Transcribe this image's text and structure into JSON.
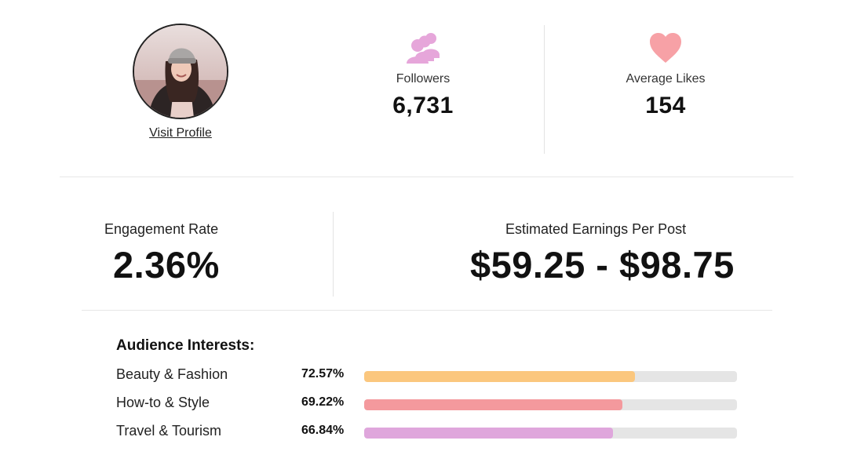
{
  "profile": {
    "visit_label": "Visit Profile",
    "avatar_icon": "profile-photo"
  },
  "followers": {
    "label": "Followers",
    "value": "6,731",
    "icon": "group-icon",
    "icon_color": "#e6a6da"
  },
  "likes": {
    "label": "Average Likes",
    "value": "154",
    "icon": "heart-icon",
    "icon_color": "#f7a1a6"
  },
  "engagement": {
    "label": "Engagement Rate",
    "value": "2.36%"
  },
  "earnings": {
    "label": "Estimated Earnings Per Post",
    "value": "$59.25 - $98.75"
  },
  "interests": {
    "title": "Audience Interests:",
    "items": [
      {
        "name": "Beauty & Fashion",
        "percent_label": "72.57%",
        "fill_fraction": 0.7257,
        "color": "#fbc77e"
      },
      {
        "name": "How-to & Style",
        "percent_label": "69.22%",
        "fill_fraction": 0.6922,
        "color": "#f4999d"
      },
      {
        "name": "Travel & Tourism",
        "percent_label": "66.84%",
        "fill_fraction": 0.6684,
        "color": "#dfa6dc"
      }
    ]
  }
}
